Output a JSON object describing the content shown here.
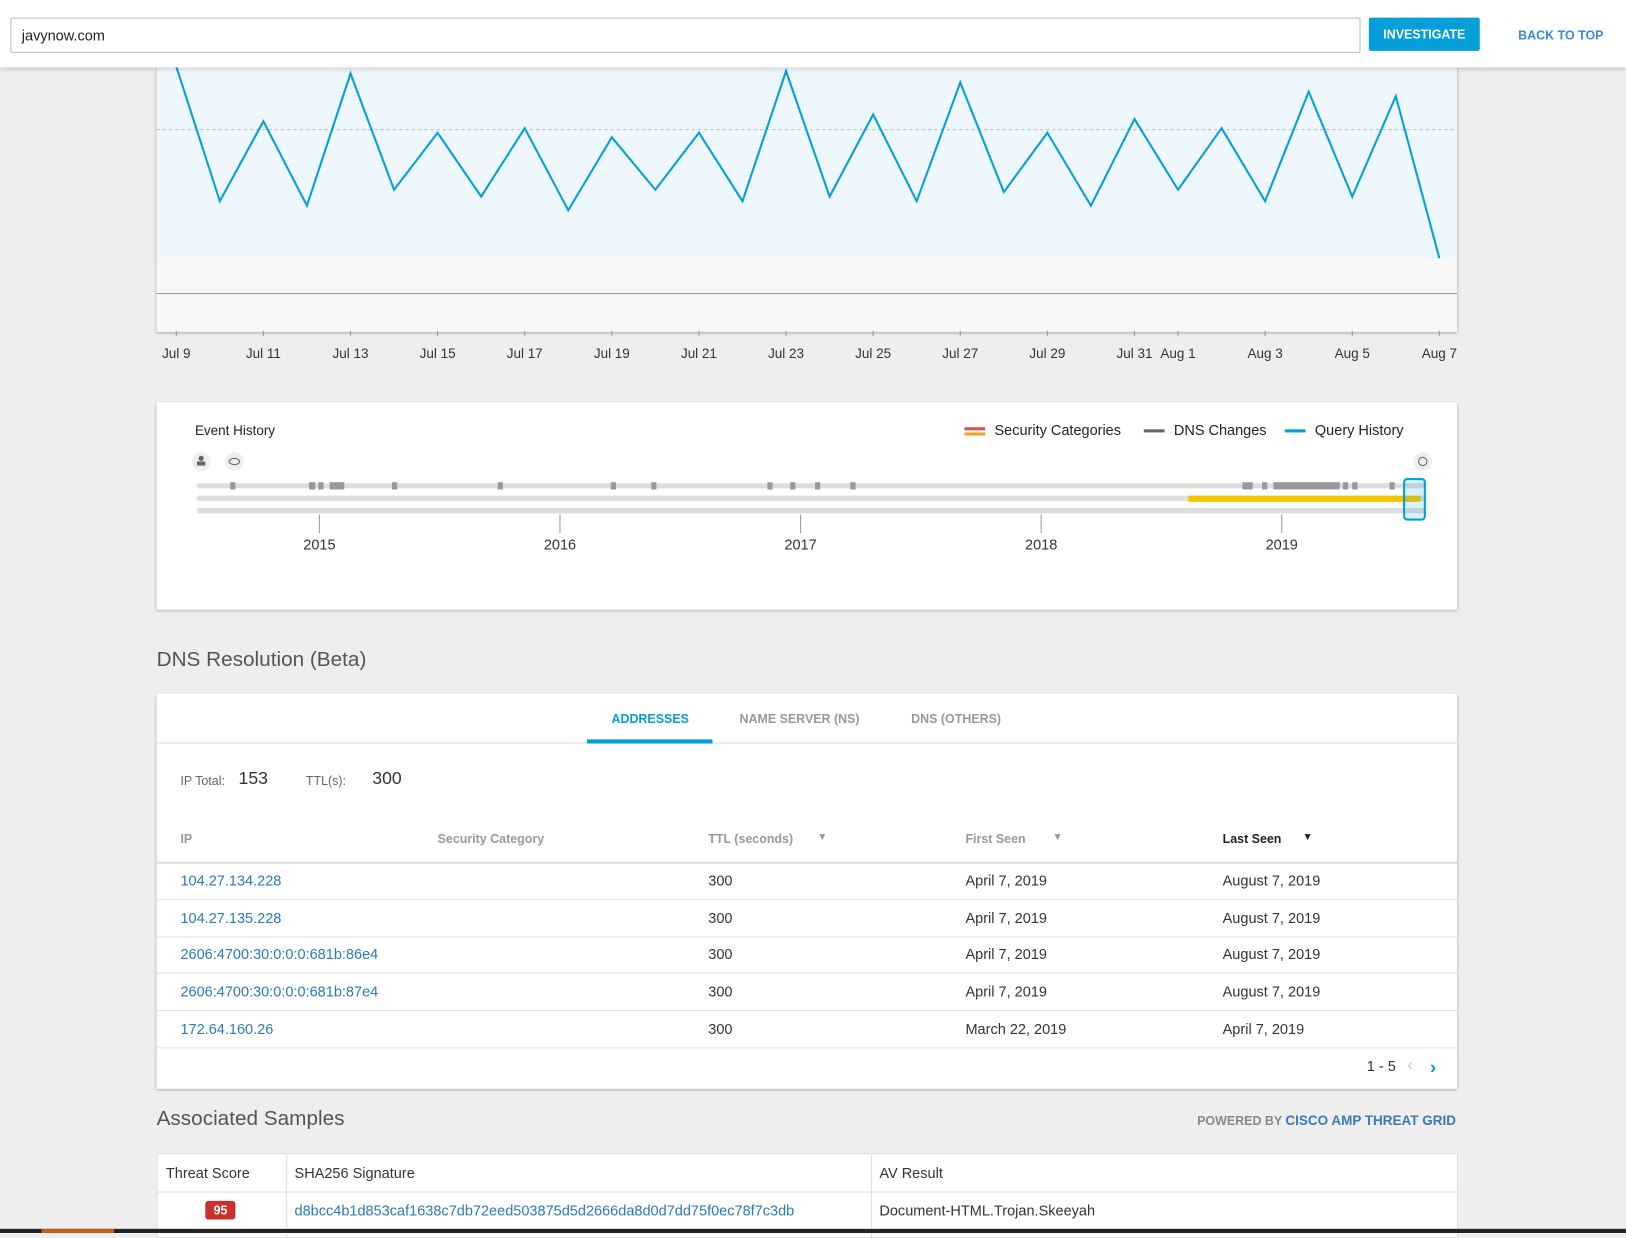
{
  "search": {
    "query": "javynow.com",
    "button": "INVESTIGATE",
    "back": "BACK TO TOP"
  },
  "chart_data": {
    "type": "line",
    "categories": [
      "Jul 9",
      null,
      "Jul 11",
      null,
      "Jul 13",
      null,
      "Jul 15",
      null,
      "Jul 17",
      null,
      "Jul 19",
      null,
      "Jul 21",
      null,
      "Jul 23",
      null,
      "Jul 25",
      null,
      "Jul 27",
      null,
      "Jul 29",
      null,
      "Jul 31",
      "Aug 1",
      null,
      "Aug 3",
      null,
      "Aug 5",
      null,
      "Aug 7"
    ],
    "series": [
      {
        "name": "Query History",
        "color": "#049fd9",
        "values": [
          99,
          40,
          75,
          38,
          96,
          45,
          70,
          42,
          72,
          36,
          68,
          45,
          70,
          40,
          97,
          42,
          78,
          40,
          92,
          44,
          70,
          38,
          76,
          45,
          72,
          40,
          88,
          42,
          86,
          15
        ]
      }
    ],
    "ylim": [
      0,
      100
    ]
  },
  "event_history": {
    "title": "Event History",
    "legend": [
      {
        "name": "Security Categories",
        "color": "#d9534f"
      },
      {
        "name": "DNS Changes",
        "color": "#666666"
      },
      {
        "name": "Query History",
        "color": "#049fd9"
      }
    ],
    "years": [
      "2015",
      "2016",
      "2017",
      "2018",
      "2019"
    ]
  },
  "dns": {
    "title": "DNS Resolution (Beta)",
    "tabs": [
      "ADDRESSES",
      "NAME SERVER (NS)",
      "DNS (OTHERS)"
    ],
    "ip_total_label": "IP Total:",
    "ip_total": 153,
    "ttl_label": "TTL(s):",
    "ttl": 300,
    "columns": [
      "IP",
      "Security Category",
      "TTL (seconds)",
      "First Seen",
      "Last Seen"
    ],
    "rows": [
      {
        "ip": "104.27.134.228",
        "ttl": 300,
        "first_seen": "April 7, 2019",
        "last_seen": "August 7, 2019"
      },
      {
        "ip": "104.27.135.228",
        "ttl": 300,
        "first_seen": "April 7, 2019",
        "last_seen": "August 7, 2019"
      },
      {
        "ip": "2606:4700:30:0:0:0:681b:86e4",
        "ttl": 300,
        "first_seen": "April 7, 2019",
        "last_seen": "August 7, 2019"
      },
      {
        "ip": "2606:4700:30:0:0:0:681b:87e4",
        "ttl": 300,
        "first_seen": "April 7, 2019",
        "last_seen": "August 7, 2019"
      },
      {
        "ip": "172.64.160.26",
        "ttl": 300,
        "first_seen": "March 22, 2019",
        "last_seen": "April 7, 2019"
      }
    ],
    "pagination": "1 - 5"
  },
  "samples": {
    "title": "Associated Samples",
    "powered_by": "POWERED BY",
    "provider": "CISCO AMP THREAT GRID",
    "columns": [
      "Threat Score",
      "SHA256 Signature",
      "AV Result"
    ],
    "rows": [
      {
        "score": 95,
        "sha256": "d8bcc4b1d853caf1638c7db72eed503875d5d2666da8d0d7dd75f0ec78f7c3db",
        "av_result": "Document-HTML.Trojan.Skeeyah"
      }
    ]
  }
}
